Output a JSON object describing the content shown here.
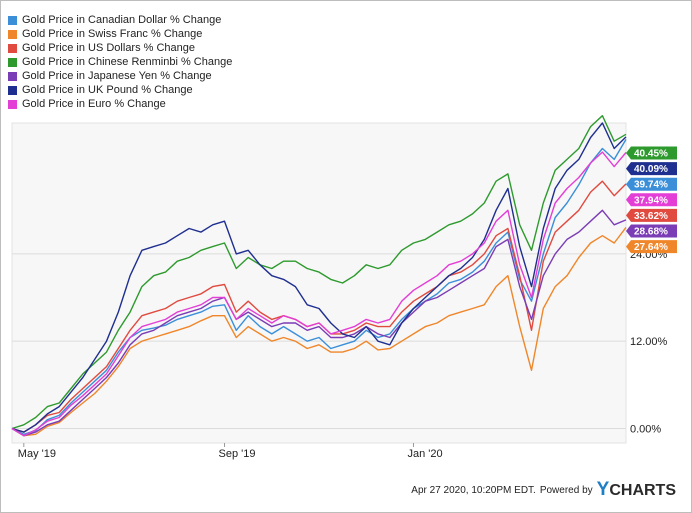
{
  "chart_data": {
    "type": "line",
    "title": "",
    "x_labels": [
      "May '19",
      "Sep '19",
      "Jan '20"
    ],
    "y_ticks": [
      "0.00%",
      "12.00%",
      "24.00%"
    ],
    "y_tick_values": [
      0,
      12,
      24
    ],
    "ylim": [
      -2,
      42
    ],
    "x_positions_note": "index 0 = start (late Apr 2019), index 52 = Apr 27 2020",
    "x_label_indices": [
      1,
      18,
      34
    ],
    "series": [
      {
        "name": "Gold Price in Canadian Dollar % Change",
        "color": "#3b8fd9",
        "end_label": "39.74%",
        "values": [
          0,
          -0.8,
          -0.3,
          1.2,
          1.8,
          3.5,
          5.0,
          6.5,
          8.0,
          10.5,
          12.5,
          13.5,
          13.8,
          14.2,
          15.0,
          15.5,
          16.0,
          16.8,
          17.0,
          13.5,
          15.5,
          14.0,
          13.0,
          14.0,
          13.0,
          12.0,
          12.5,
          11.0,
          11.5,
          12.0,
          13.5,
          12.5,
          13.0,
          15.0,
          16.5,
          17.5,
          18.5,
          20.0,
          20.5,
          21.5,
          23.0,
          25.5,
          27.0,
          20.5,
          17.5,
          24.0,
          29.0,
          31.0,
          33.5,
          36.5,
          38.5,
          37.0,
          39.74
        ]
      },
      {
        "name": "Gold Price in Swiss Franc % Change",
        "color": "#f0862a",
        "end_label": "27.64%",
        "values": [
          0,
          -1.0,
          -0.8,
          0.3,
          0.8,
          2.2,
          3.5,
          4.8,
          6.5,
          8.5,
          11.0,
          12.0,
          12.5,
          13.0,
          13.5,
          14.0,
          14.8,
          15.5,
          15.5,
          12.5,
          14.0,
          13.0,
          12.0,
          12.5,
          12.0,
          11.0,
          11.5,
          10.5,
          10.5,
          11.0,
          12.0,
          10.8,
          11.0,
          12.0,
          13.0,
          14.0,
          14.5,
          15.5,
          16.0,
          16.5,
          17.0,
          19.5,
          21.0,
          14.0,
          8.0,
          16.5,
          19.5,
          21.0,
          23.5,
          25.5,
          26.5,
          25.5,
          27.64
        ]
      },
      {
        "name": "Gold Price in US Dollars % Change",
        "color": "#e04a3f",
        "end_label": "33.62%",
        "values": [
          0,
          -0.5,
          0.5,
          1.8,
          2.2,
          4.0,
          5.5,
          7.0,
          8.5,
          11.0,
          13.5,
          15.5,
          16.0,
          16.5,
          17.5,
          18.0,
          18.5,
          19.5,
          19.8,
          16.0,
          17.5,
          16.0,
          15.0,
          15.5,
          15.0,
          14.0,
          14.5,
          13.0,
          13.0,
          13.5,
          14.5,
          14.0,
          14.0,
          16.0,
          17.5,
          18.5,
          19.5,
          21.0,
          21.5,
          22.5,
          24.0,
          26.5,
          27.5,
          21.0,
          13.5,
          23.0,
          27.0,
          28.5,
          30.0,
          32.5,
          34.0,
          32.0,
          33.62
        ]
      },
      {
        "name": "Gold Price in Chinese Renminbi % Change",
        "color": "#2e9a2e",
        "end_label": "40.45%",
        "values": [
          0,
          0.5,
          1.5,
          3.0,
          3.5,
          5.5,
          7.5,
          9.0,
          10.5,
          13.5,
          16.0,
          19.5,
          21.0,
          21.5,
          23.0,
          23.5,
          24.5,
          25.0,
          25.5,
          22.0,
          23.5,
          22.5,
          22.0,
          23.0,
          23.0,
          22.0,
          21.5,
          20.5,
          20.0,
          21.0,
          22.5,
          22.0,
          22.5,
          24.5,
          25.5,
          26.0,
          27.0,
          28.0,
          28.5,
          29.5,
          31.0,
          34.0,
          35.0,
          28.0,
          24.5,
          31.0,
          35.5,
          37.0,
          38.5,
          41.5,
          43.0,
          39.5,
          40.45
        ]
      },
      {
        "name": "Gold Price in Japanese Yen % Change",
        "color": "#7b3db5",
        "end_label": "28.68%",
        "values": [
          0,
          -1.0,
          -0.5,
          0.5,
          1.0,
          2.5,
          4.0,
          5.5,
          7.0,
          9.0,
          11.5,
          13.0,
          13.5,
          14.5,
          15.5,
          16.0,
          16.5,
          17.5,
          18.0,
          15.0,
          16.0,
          15.0,
          14.0,
          14.5,
          14.5,
          13.5,
          14.0,
          12.5,
          12.5,
          13.0,
          14.0,
          13.0,
          12.5,
          14.5,
          16.0,
          17.5,
          18.0,
          19.0,
          20.0,
          21.0,
          22.0,
          25.0,
          26.0,
          19.5,
          15.0,
          21.0,
          24.0,
          26.0,
          27.0,
          28.5,
          30.0,
          28.0,
          28.68
        ]
      },
      {
        "name": "Gold Price in UK Pound % Change",
        "color": "#1f2f8f",
        "end_label": "40.09%",
        "values": [
          0,
          -0.5,
          0.5,
          2.0,
          3.0,
          5.0,
          7.0,
          9.5,
          12.0,
          16.0,
          21.0,
          24.5,
          25.0,
          25.5,
          26.5,
          27.5,
          27.0,
          28.0,
          28.5,
          24.0,
          24.5,
          22.5,
          21.0,
          20.5,
          19.5,
          17.0,
          16.5,
          14.5,
          13.0,
          12.5,
          14.0,
          12.0,
          11.5,
          14.5,
          16.5,
          18.0,
          19.5,
          21.0,
          22.0,
          23.5,
          26.0,
          30.0,
          33.0,
          25.0,
          19.5,
          27.5,
          33.0,
          35.5,
          37.0,
          40.0,
          42.0,
          38.5,
          40.09
        ]
      },
      {
        "name": "Gold Price in Euro % Change",
        "color": "#e33fd6",
        "end_label": "37.94%",
        "values": [
          0,
          -1.0,
          -0.2,
          1.0,
          1.5,
          3.2,
          4.5,
          6.0,
          7.5,
          10.0,
          12.5,
          14.0,
          14.5,
          15.0,
          16.0,
          16.5,
          17.0,
          18.0,
          18.0,
          15.0,
          16.5,
          15.5,
          14.5,
          15.5,
          15.0,
          14.0,
          14.5,
          13.0,
          13.5,
          14.0,
          15.0,
          14.5,
          15.0,
          17.5,
          19.0,
          20.0,
          21.0,
          22.5,
          23.0,
          24.0,
          25.5,
          28.5,
          30.0,
          22.5,
          18.0,
          26.0,
          31.0,
          33.0,
          34.5,
          36.5,
          38.0,
          36.0,
          37.94
        ]
      }
    ],
    "legend_position": "top-left"
  },
  "legend": [
    {
      "label": "Gold Price in Canadian Dollar % Change",
      "color": "#3b8fd9"
    },
    {
      "label": "Gold Price in Swiss Franc % Change",
      "color": "#f0862a"
    },
    {
      "label": "Gold Price in US Dollars % Change",
      "color": "#e04a3f"
    },
    {
      "label": "Gold Price in Chinese Renminbi % Change",
      "color": "#2e9a2e"
    },
    {
      "label": "Gold Price in Japanese Yen % Change",
      "color": "#7b3db5"
    },
    {
      "label": "Gold Price in UK Pound % Change",
      "color": "#1f2f8f"
    },
    {
      "label": "Gold Price in Euro % Change",
      "color": "#e33fd6"
    }
  ],
  "end_tags_order": [
    "40.45%",
    "40.09%",
    "39.74%",
    "37.94%",
    "33.62%",
    "28.68%",
    "27.64%"
  ],
  "footer": {
    "timestamp": "Apr 27 2020, 10:20PM EDT.",
    "powered_by": "Powered by",
    "brand_y": "Y",
    "brand_rest": "CHARTS"
  }
}
